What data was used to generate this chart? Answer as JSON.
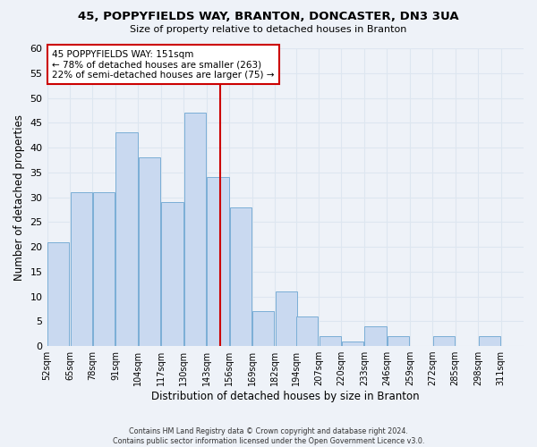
{
  "title1": "45, POPPYFIELDS WAY, BRANTON, DONCASTER, DN3 3UA",
  "title2": "Size of property relative to detached houses in Branton",
  "xlabel": "Distribution of detached houses by size in Branton",
  "ylabel": "Number of detached properties",
  "bar_left_edges": [
    52,
    65,
    78,
    91,
    104,
    117,
    130,
    143,
    156,
    169,
    182,
    194,
    207,
    220,
    233,
    246,
    259,
    272,
    285,
    298
  ],
  "bar_heights": [
    21,
    31,
    31,
    43,
    38,
    29,
    47,
    34,
    28,
    7,
    11,
    6,
    2,
    1,
    4,
    2,
    0,
    2,
    0,
    2
  ],
  "bin_width": 13,
  "bar_color": "#c9d9f0",
  "bar_edge_color": "#7baed6",
  "property_line_x": 151,
  "property_line_color": "#cc0000",
  "ylim": [
    0,
    60
  ],
  "yticks": [
    0,
    5,
    10,
    15,
    20,
    25,
    30,
    35,
    40,
    45,
    50,
    55,
    60
  ],
  "xtick_labels": [
    "52sqm",
    "65sqm",
    "78sqm",
    "91sqm",
    "104sqm",
    "117sqm",
    "130sqm",
    "143sqm",
    "156sqm",
    "169sqm",
    "182sqm",
    "194sqm",
    "207sqm",
    "220sqm",
    "233sqm",
    "246sqm",
    "259sqm",
    "272sqm",
    "285sqm",
    "298sqm",
    "311sqm"
  ],
  "xtick_positions": [
    52,
    65,
    78,
    91,
    104,
    117,
    130,
    143,
    156,
    169,
    182,
    194,
    207,
    220,
    233,
    246,
    259,
    272,
    285,
    298,
    311
  ],
  "annotation_title": "45 POPPYFIELDS WAY: 151sqm",
  "annotation_line1": "← 78% of detached houses are smaller (263)",
  "annotation_line2": "22% of semi-detached houses are larger (75) →",
  "annotation_box_color": "#ffffff",
  "annotation_box_edge_color": "#cc0000",
  "grid_color": "#dde6f0",
  "background_color": "#eef2f8",
  "footer1": "Contains HM Land Registry data © Crown copyright and database right 2024.",
  "footer2": "Contains public sector information licensed under the Open Government Licence v3.0.",
  "xlim_left": 52,
  "xlim_right": 324
}
